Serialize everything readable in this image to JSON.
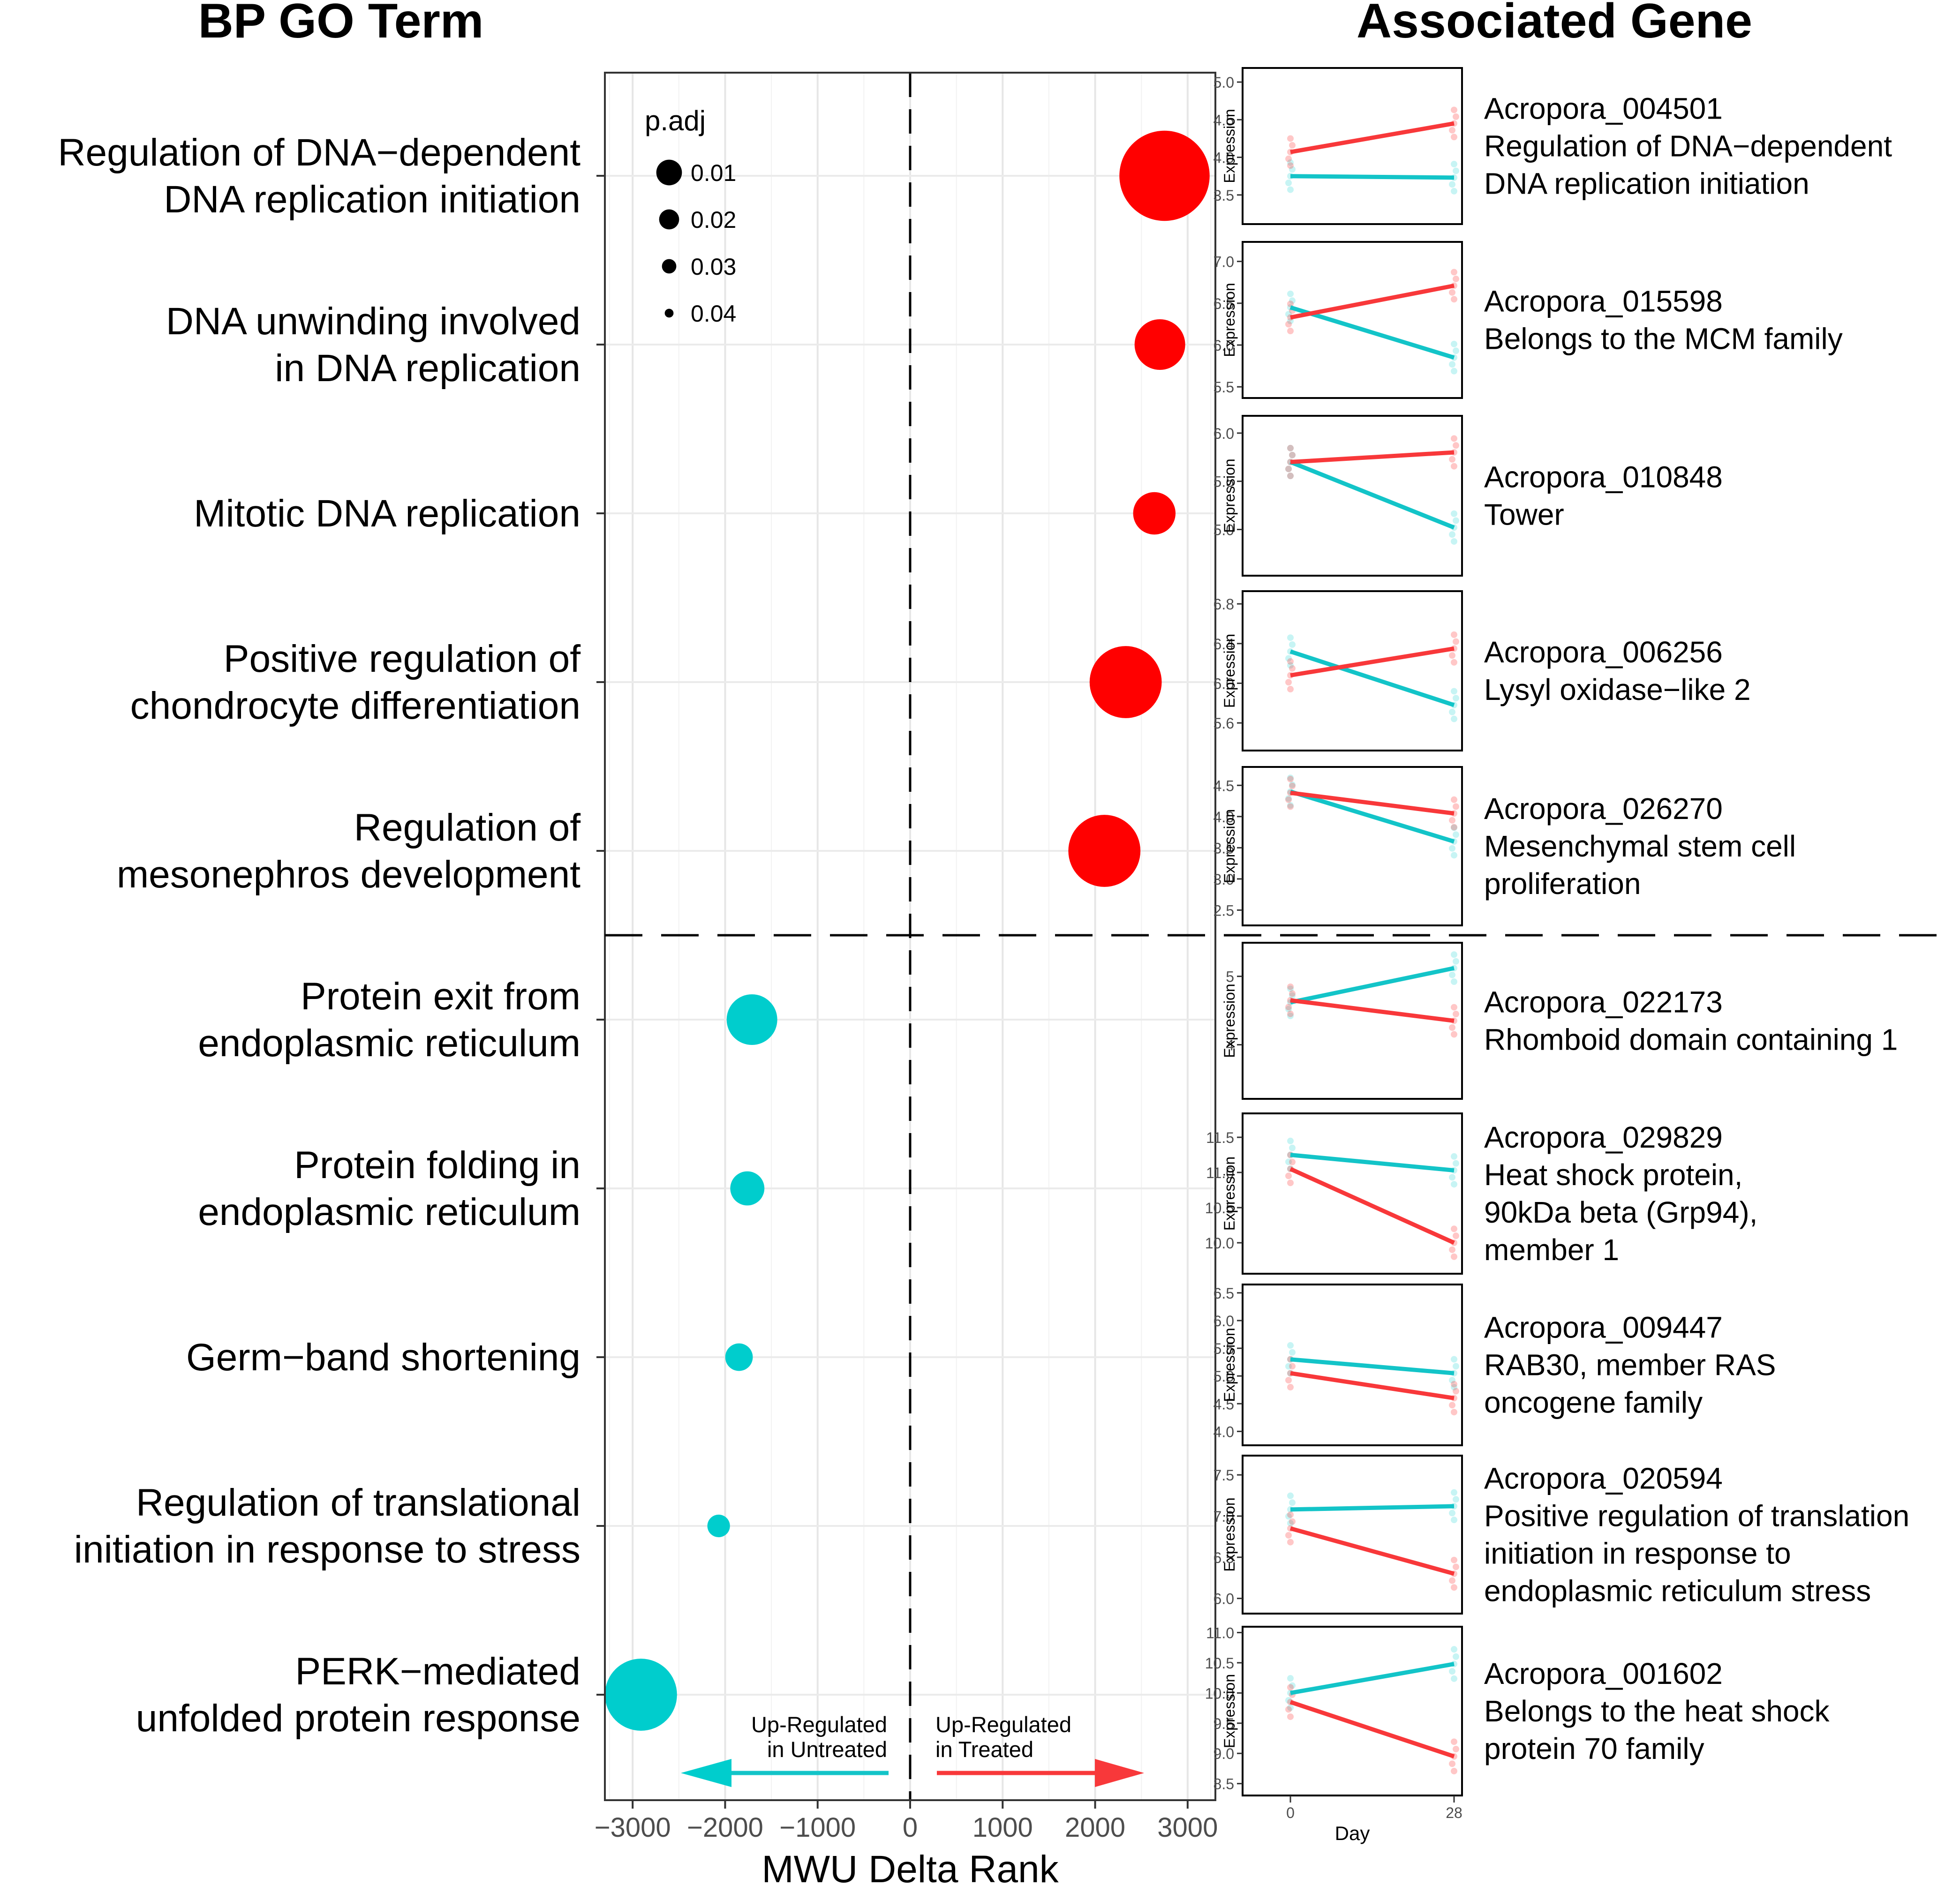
{
  "headers": {
    "left": "BP GO Term",
    "right": "Associated Gene"
  },
  "colors": {
    "treated": "#FF0000",
    "untreated": "#00CDCD",
    "treated_line": "#F8383A",
    "untreated_line": "#13C4C8"
  },
  "chart_data": {
    "type": "scatter",
    "xlabel": "MWU Delta Rank",
    "xlim": [
      -3300,
      3300
    ],
    "xticks": [
      -3000,
      -2000,
      -1000,
      0,
      1000,
      2000,
      3000
    ],
    "xtick_labels": [
      "−3000",
      "−2000",
      "−1000",
      "0",
      "1000",
      "2000",
      "3000"
    ],
    "grid": true,
    "legend": {
      "title": "p.adj",
      "position": "top-left",
      "entries": [
        {
          "label": "0.01",
          "value": 0.01
        },
        {
          "label": "0.02",
          "value": 0.02
        },
        {
          "label": "0.03",
          "value": 0.03
        },
        {
          "label": "0.04",
          "value": 0.04
        }
      ]
    },
    "arrow_labels": {
      "left": [
        "Up-Regulated",
        "in Untreated"
      ],
      "right": [
        "Up-Regulated",
        "in Treated"
      ]
    },
    "terms": [
      {
        "lines": [
          "Regulation of DNA−dependent",
          "DNA replication initiation"
        ],
        "delta_rank": 2750,
        "padj": 0.001,
        "group": "treated"
      },
      {
        "lines": [
          "DNA unwinding involved",
          "in DNA replication"
        ],
        "delta_rank": 2700,
        "padj": 0.025,
        "group": "treated"
      },
      {
        "lines": [
          "Mitotic DNA replication"
        ],
        "delta_rank": 2640,
        "padj": 0.03,
        "group": "treated"
      },
      {
        "lines": [
          "Positive regulation of",
          "chondrocyte differentiation"
        ],
        "delta_rank": 2330,
        "padj": 0.012,
        "group": "treated"
      },
      {
        "lines": [
          "Regulation of",
          "mesonephros development"
        ],
        "delta_rank": 2100,
        "padj": 0.012,
        "group": "treated"
      },
      {
        "lines": [
          "Protein exit from",
          "endoplasmic reticulum"
        ],
        "delta_rank": -1710,
        "padj": 0.025,
        "group": "untreated"
      },
      {
        "lines": [
          "Protein folding in",
          "endoplasmic reticulum"
        ],
        "delta_rank": -1760,
        "padj": 0.035,
        "group": "untreated"
      },
      {
        "lines": [
          "Germ−band shortening"
        ],
        "delta_rank": -1850,
        "padj": 0.039,
        "group": "untreated"
      },
      {
        "lines": [
          "Regulation of translational",
          "initiation in response to stress"
        ],
        "delta_rank": -2070,
        "padj": 0.042,
        "group": "untreated"
      },
      {
        "lines": [
          "PERK−mediated",
          "unfolded protein response"
        ],
        "delta_rank": -2910,
        "padj": 0.012,
        "group": "untreated"
      }
    ],
    "gene_panels": {
      "ylabel": "Expression",
      "xlabel": "Day",
      "days": [
        "0",
        "28"
      ],
      "genes": [
        {
          "lines": [
            "Acropora_004501",
            "Regulation of DNA−dependent",
            "DNA replication initiation"
          ],
          "ylim": [
            3.15,
            5.15
          ],
          "yticks": [
            "3.5",
            "4.0",
            "4.5",
            "5.0"
          ],
          "ytick_values": [
            3.5,
            4.0,
            4.5,
            5.0
          ],
          "treated": [
            4.07,
            4.45
          ],
          "untreated": [
            3.75,
            3.73
          ]
        },
        {
          "lines": [
            "Acropora_015598",
            "Belongs to the MCM family"
          ],
          "ylim": [
            5.4,
            7.2
          ],
          "yticks": [
            "5.5",
            "6.0",
            "6.5",
            "7.0"
          ],
          "ytick_values": [
            5.5,
            6.0,
            6.5,
            7.0
          ],
          "treated": [
            6.33,
            6.71
          ],
          "untreated": [
            6.45,
            5.85
          ]
        },
        {
          "lines": [
            "Acropora_010848",
            "Tower"
          ],
          "ylim": [
            4.55,
            6.15
          ],
          "yticks": [
            "5.0",
            "5.5",
            "6.0"
          ],
          "ytick_values": [
            5.0,
            5.5,
            6.0
          ],
          "treated": [
            5.7,
            5.8
          ],
          "untreated": [
            5.7,
            5.02
          ]
        },
        {
          "lines": [
            "Acropora_006256",
            "Lysyl oxidase−like 2"
          ],
          "ylim": [
            5.35,
            6.9
          ],
          "yticks": [
            "5.6",
            "6.0",
            "6.4",
            "6.8"
          ],
          "ytick_values": [
            5.6,
            6.0,
            6.4,
            6.8
          ],
          "treated": [
            6.08,
            6.35
          ],
          "untreated": [
            6.32,
            5.78
          ]
        },
        {
          "lines": [
            "Acropora_026270",
            "Mesenchymal stem cell",
            "proliferation"
          ],
          "ylim": [
            2.3,
            4.75
          ],
          "yticks": [
            "2.5",
            "3.0",
            "3.5",
            "4.0",
            "4.5"
          ],
          "ytick_values": [
            2.5,
            3.0,
            3.5,
            4.0,
            4.5
          ],
          "treated": [
            4.38,
            4.05
          ],
          "untreated": [
            4.4,
            3.6
          ]
        },
        {
          "lines": [
            "Acropora_022173",
            "Rhomboid domain containing 1"
          ],
          "ylim": [
            3.25,
            5.45
          ],
          "yticks": [
            "4",
            "5"
          ],
          "ytick_values": [
            4,
            5
          ],
          "treated": [
            4.65,
            4.35
          ],
          "untreated": [
            4.62,
            5.12
          ]
        },
        {
          "lines": [
            "Acropora_029829",
            "Heat shock protein,",
            "90kDa beta (Grp94),",
            "member 1"
          ],
          "ylim": [
            9.6,
            11.8
          ],
          "yticks": [
            "10.0",
            "10.5",
            "11.0",
            "11.5"
          ],
          "ytick_values": [
            10.0,
            10.5,
            11.0,
            11.5
          ],
          "treated": [
            11.05,
            10.0
          ],
          "untreated": [
            11.25,
            11.03
          ]
        },
        {
          "lines": [
            "Acropora_009447",
            "RAB30, member RAS",
            "oncogene family"
          ],
          "ylim": [
            3.8,
            6.6
          ],
          "yticks": [
            "4.0",
            "4.5",
            "5.0",
            "5.5",
            "6.0",
            "6.5"
          ],
          "ytick_values": [
            4.0,
            4.5,
            5.0,
            5.5,
            6.0,
            6.5
          ],
          "treated": [
            5.05,
            4.6
          ],
          "untreated": [
            5.3,
            5.05
          ]
        },
        {
          "lines": [
            "Acropora_020594",
            "Positive regulation of translation",
            "initiation in response to",
            "endoplasmic reticulum stress"
          ],
          "ylim": [
            5.85,
            7.7
          ],
          "yticks": [
            "6.0",
            "6.5",
            "7.0",
            "7.5"
          ],
          "ytick_values": [
            6.0,
            6.5,
            7.0,
            7.5
          ],
          "treated": [
            6.85,
            6.3
          ],
          "untreated": [
            7.08,
            7.12
          ]
        },
        {
          "lines": [
            "Acropora_001602",
            "Belongs to the heat shock",
            "protein 70 family"
          ],
          "ylim": [
            8.35,
            11.05
          ],
          "yticks": [
            "8.5",
            "9.0",
            "9.5",
            "10.0",
            "10.5",
            "11.0"
          ],
          "ytick_values": [
            8.5,
            9.0,
            9.5,
            10.0,
            10.5,
            11.0
          ],
          "treated": [
            9.85,
            8.95
          ],
          "untreated": [
            10.0,
            10.48
          ]
        }
      ]
    }
  }
}
